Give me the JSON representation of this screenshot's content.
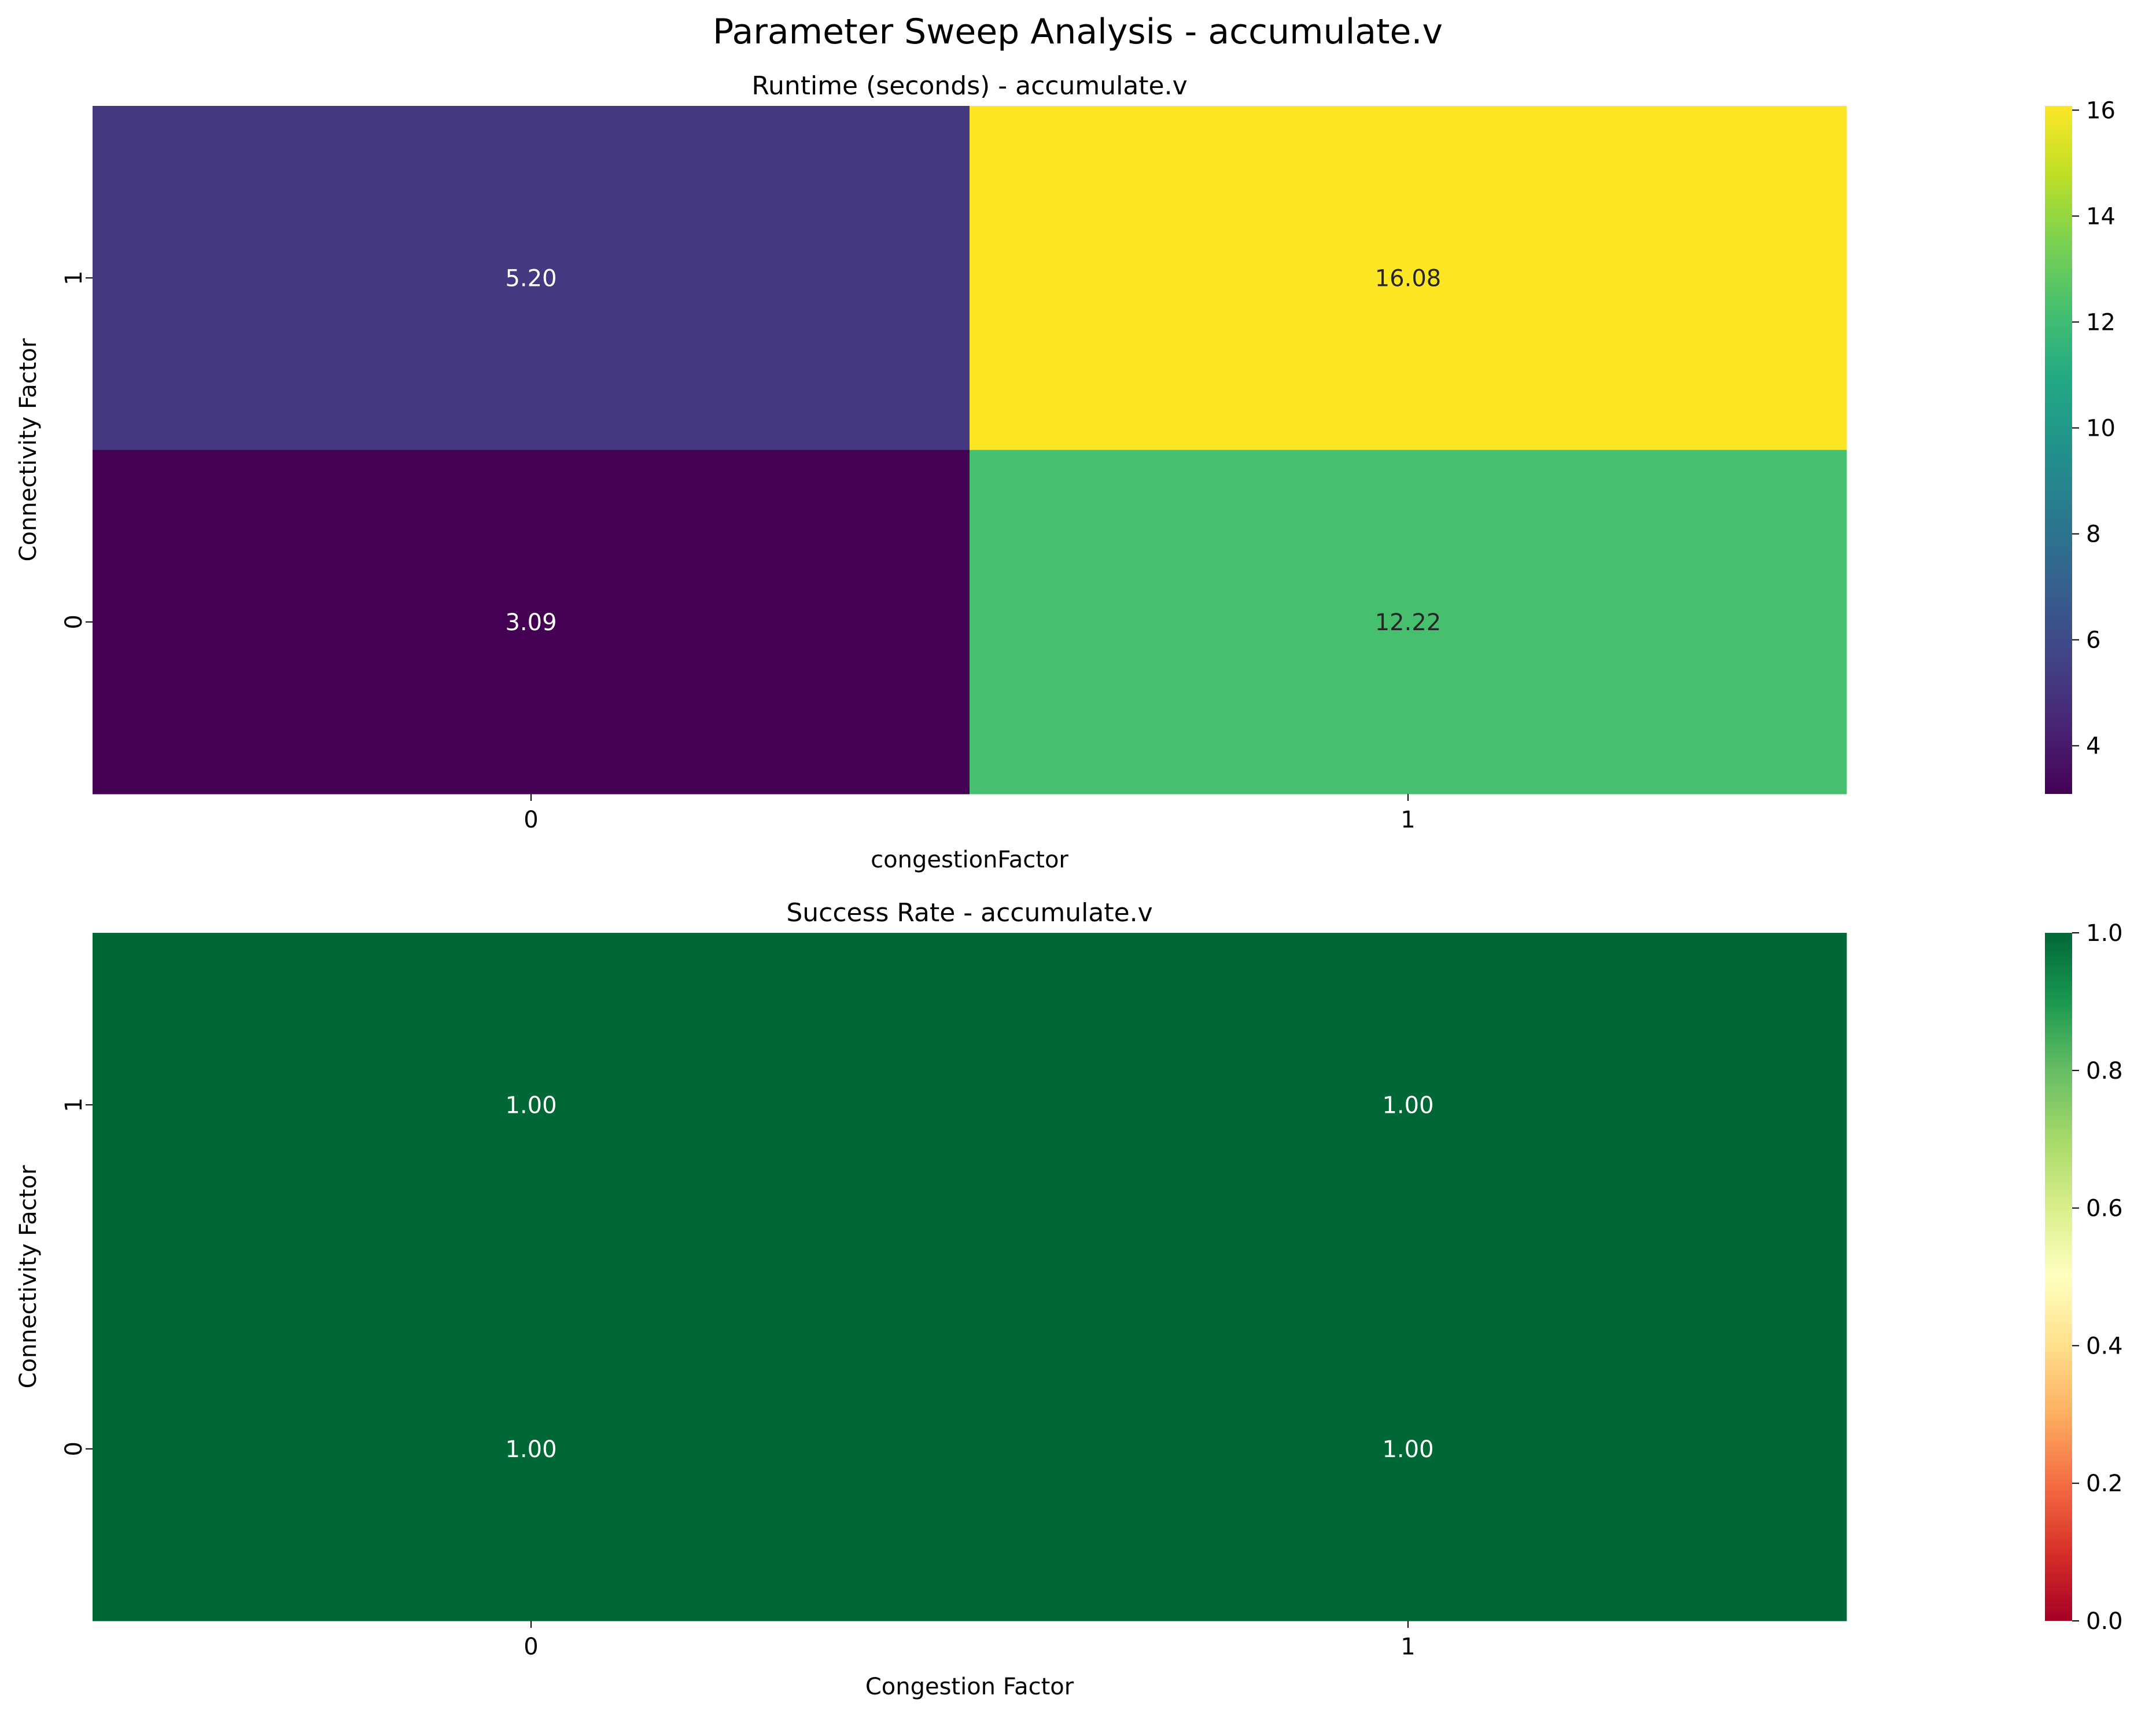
{
  "figure": {
    "suptitle": "Parameter Sweep Analysis - accumulate.v"
  },
  "chart_data": [
    {
      "type": "heatmap",
      "title": "Runtime (seconds) - accumulate.v",
      "xlabel": "congestionFactor",
      "ylabel": "Connectivity Factor",
      "x_categories": [
        "0",
        "1"
      ],
      "y_categories": [
        "1",
        "0"
      ],
      "values": [
        [
          5.2,
          16.08
        ],
        [
          3.09,
          12.22
        ]
      ],
      "value_labels": [
        [
          "5.20",
          "16.08"
        ],
        [
          "3.09",
          "12.22"
        ]
      ],
      "value_format": "2 decimals",
      "colormap": "viridis",
      "colorbar": {
        "range": [
          3.09,
          16.08
        ],
        "ticks": [
          4,
          6,
          8,
          10,
          12,
          14,
          16
        ],
        "tick_labels": [
          "4",
          "6",
          "8",
          "10",
          "12",
          "14",
          "16"
        ]
      }
    },
    {
      "type": "heatmap",
      "title": "Success Rate - accumulate.v",
      "xlabel": "Congestion Factor",
      "ylabel": "Connectivity Factor",
      "x_categories": [
        "0",
        "1"
      ],
      "y_categories": [
        "1",
        "0"
      ],
      "values": [
        [
          1.0,
          1.0
        ],
        [
          1.0,
          1.0
        ]
      ],
      "value_labels": [
        [
          "1.00",
          "1.00"
        ],
        [
          "1.00",
          "1.00"
        ]
      ],
      "value_format": "2 decimals",
      "colormap": "RdYlGn",
      "colorbar": {
        "range": [
          0,
          1
        ],
        "ticks": [
          0.0,
          0.2,
          0.4,
          0.6,
          0.8,
          1.0
        ],
        "tick_labels": [
          "0.0",
          "0.2",
          "0.4",
          "0.6",
          "0.8",
          "1.0"
        ]
      }
    }
  ]
}
